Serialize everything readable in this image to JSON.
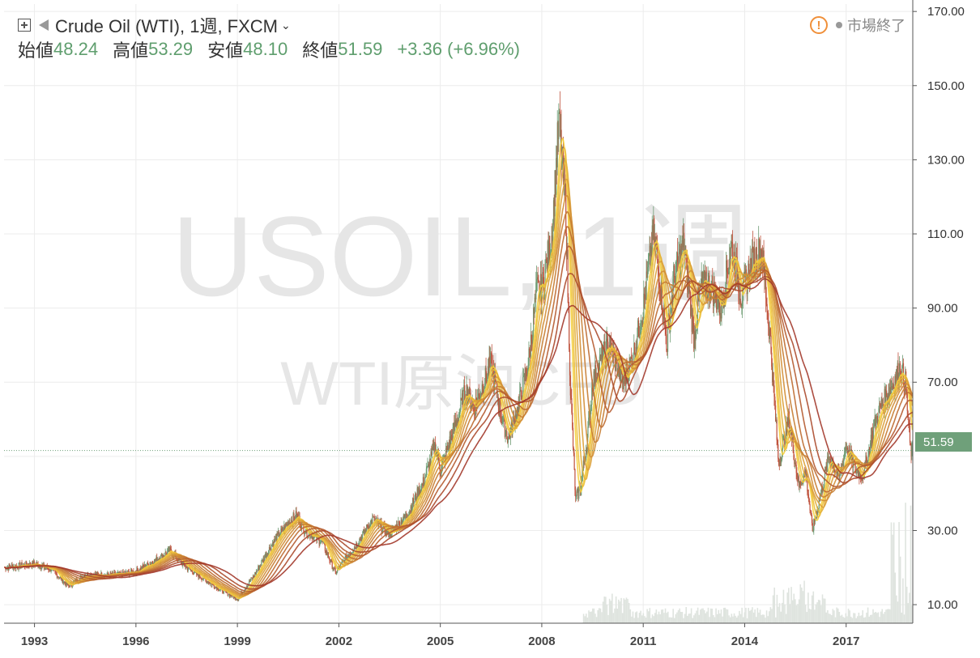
{
  "header": {
    "title": "Crude Oil (WTI), 1週, FXCM",
    "open_label": "始値",
    "open": "48.24",
    "high_label": "高値",
    "high": "53.29",
    "low_label": "安値",
    "low": "48.10",
    "close_label": "終値",
    "close": "51.59",
    "change": "+3.36 (+6.96%)",
    "market_status": "市場終了",
    "warning_glyph": "!"
  },
  "watermark": {
    "symbol": "USOIL, 1週",
    "name": "WTI原油CFD"
  },
  "colors": {
    "accent_green": "#5f9e6e",
    "price_tag": "#6fa07a",
    "ma_dark": "#a33a2c",
    "ma_light": "#f5d03c",
    "candle_up": "#6d9b73",
    "candle_down": "#c0543f",
    "warning": "#f0903a"
  },
  "chart_data": {
    "type": "candlestick",
    "title": "Crude Oil (WTI), 1週, FXCM",
    "y_axis_ticks": [
      "170.00",
      "150.00",
      "130.00",
      "110.00",
      "90.00",
      "70.00",
      "30.00",
      "10.00"
    ],
    "ylim": [
      5,
      172
    ],
    "x_axis_ticks": [
      "1993",
      "1996",
      "1999",
      "2002",
      "2005",
      "2008",
      "2011",
      "2014",
      "2017"
    ],
    "xlim": [
      1992.1,
      2018.97
    ],
    "last_price": "51.59",
    "close_path": [
      [
        1992.1,
        20
      ],
      [
        1993.0,
        21
      ],
      [
        1993.5,
        19.5
      ],
      [
        1994.0,
        15
      ],
      [
        1994.5,
        18
      ],
      [
        1995.0,
        18
      ],
      [
        1995.5,
        18
      ],
      [
        1996.0,
        19
      ],
      [
        1996.5,
        21.5
      ],
      [
        1997.0,
        24.5
      ],
      [
        1997.5,
        20
      ],
      [
        1998.0,
        17
      ],
      [
        1998.5,
        14
      ],
      [
        1999.0,
        11.5
      ],
      [
        1999.5,
        18
      ],
      [
        2000.0,
        26
      ],
      [
        2000.5,
        32
      ],
      [
        2000.75,
        34
      ],
      [
        2001.0,
        30
      ],
      [
        2001.5,
        27
      ],
      [
        2001.9,
        18.5
      ],
      [
        2002.0,
        20
      ],
      [
        2002.5,
        26
      ],
      [
        2003.0,
        33
      ],
      [
        2003.5,
        29
      ],
      [
        2004.0,
        34
      ],
      [
        2004.5,
        43
      ],
      [
        2004.85,
        53
      ],
      [
        2005.0,
        46
      ],
      [
        2005.5,
        60
      ],
      [
        2005.75,
        68
      ],
      [
        2006.0,
        63
      ],
      [
        2006.5,
        75
      ],
      [
        2006.8,
        61
      ],
      [
        2007.0,
        55
      ],
      [
        2007.3,
        63
      ],
      [
        2007.6,
        75
      ],
      [
        2007.85,
        95
      ],
      [
        2008.0,
        95
      ],
      [
        2008.3,
        110
      ],
      [
        2008.5,
        140
      ],
      [
        2008.7,
        119
      ],
      [
        2008.85,
        67
      ],
      [
        2009.0,
        38
      ],
      [
        2009.15,
        42
      ],
      [
        2009.35,
        55
      ],
      [
        2009.5,
        70
      ],
      [
        2009.8,
        77
      ],
      [
        2010.0,
        80
      ],
      [
        2010.4,
        70
      ],
      [
        2010.7,
        77
      ],
      [
        2011.0,
        90
      ],
      [
        2011.3,
        110
      ],
      [
        2011.5,
        97
      ],
      [
        2011.7,
        80
      ],
      [
        2011.9,
        98
      ],
      [
        2012.2,
        107
      ],
      [
        2012.5,
        82
      ],
      [
        2012.7,
        96
      ],
      [
        2013.0,
        96
      ],
      [
        2013.3,
        90
      ],
      [
        2013.6,
        107
      ],
      [
        2013.9,
        93
      ],
      [
        2014.2,
        102
      ],
      [
        2014.5,
        106
      ],
      [
        2014.75,
        82
      ],
      [
        2015.0,
        48
      ],
      [
        2015.3,
        60
      ],
      [
        2015.6,
        42
      ],
      [
        2015.8,
        46
      ],
      [
        2016.0,
        30
      ],
      [
        2016.2,
        38
      ],
      [
        2016.5,
        50
      ],
      [
        2016.8,
        44
      ],
      [
        2017.0,
        53
      ],
      [
        2017.3,
        46
      ],
      [
        2017.5,
        45
      ],
      [
        2017.8,
        57
      ],
      [
        2018.0,
        63
      ],
      [
        2018.3,
        68
      ],
      [
        2018.6,
        74
      ],
      [
        2018.75,
        70
      ],
      [
        2018.9,
        51.59
      ]
    ],
    "grid": true
  }
}
